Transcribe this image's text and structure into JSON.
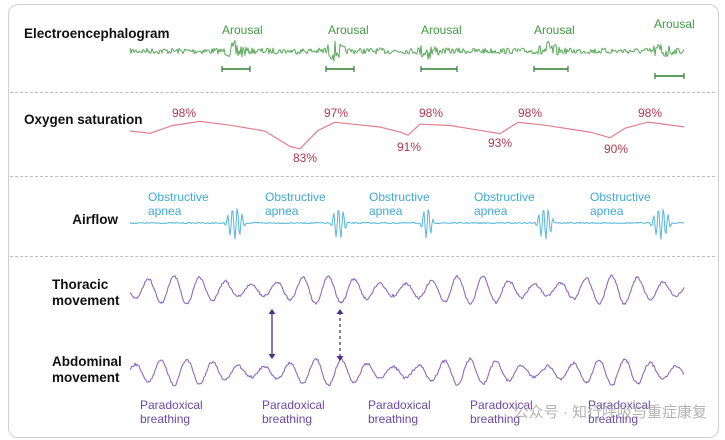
{
  "rows": {
    "eeg": {
      "label": "Electroencephalogram",
      "arousal": [
        "Arousal",
        "Arousal",
        "Arousal",
        "Arousal",
        "Arousal"
      ]
    },
    "oxygen": {
      "label": "Oxygen saturation",
      "peaks": [
        "98%",
        "97%",
        "98%",
        "98%",
        "98%"
      ],
      "troughs": [
        "83%",
        "91%",
        "93%",
        "90%"
      ]
    },
    "airflow": {
      "label": "Airflow",
      "apnea_line1": "Obstructive",
      "apnea_line2": "apnea"
    },
    "thoracic": {
      "label_line1": "Thoracic",
      "label_line2": "movement"
    },
    "abdominal": {
      "label_line1": "Abdominal",
      "label_line2": "movement",
      "paradoxical_line1": "Paradoxical",
      "paradoxical_line2": "breathing"
    }
  },
  "watermark": "公众号 · 知行呼吸与重症康复",
  "colors": {
    "eeg": "#5aa85a",
    "oxygen": "#e0808e",
    "airflow": "#55b6e0",
    "movement": "#8a6cc0",
    "arrow": "#4b2f86"
  }
}
